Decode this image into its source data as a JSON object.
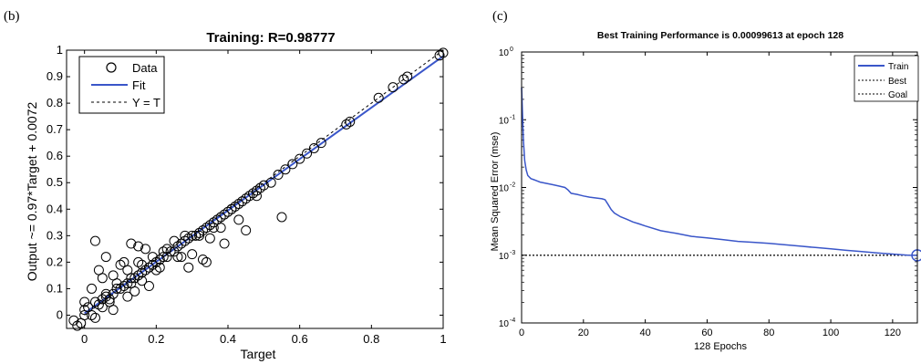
{
  "panels": {
    "b": {
      "label": "(b)"
    },
    "c": {
      "label": "(c)"
    }
  },
  "chart_data": [
    {
      "type": "scatter",
      "title": "Training: R=0.98777",
      "xlabel": "Target",
      "ylabel": "Output ~= 0.97*Target + 0.0072",
      "xlim": [
        -0.05,
        1
      ],
      "ylim": [
        -0.05,
        1
      ],
      "xticks": [
        "0",
        "0.2",
        "0.4",
        "0.6",
        "0.8",
        "1"
      ],
      "yticks": [
        "0",
        "0.1",
        "0.2",
        "0.3",
        "0.4",
        "0.5",
        "0.6",
        "0.7",
        "0.8",
        "0.9",
        "1"
      ],
      "legend": {
        "placement": "top-left",
        "entries": [
          "Data",
          "Fit",
          "Y = T"
        ]
      },
      "fit": {
        "slope": 0.97,
        "intercept": 0.0072
      },
      "series": [
        {
          "name": "Data",
          "marker": "circle",
          "x": [
            -0.03,
            -0.02,
            -0.01,
            0.0,
            0.0,
            0.01,
            0.02,
            0.03,
            0.04,
            0.05,
            0.06,
            0.07,
            0.08,
            0.09,
            0.1,
            0.11,
            0.12,
            0.13,
            0.14,
            0.15,
            0.16,
            0.17,
            0.18,
            0.19,
            0.2,
            0.21,
            0.22,
            0.23,
            0.24,
            0.25,
            0.26,
            0.27,
            0.28,
            0.29,
            0.3,
            0.31,
            0.32,
            0.33,
            0.34,
            0.35,
            0.36,
            0.37,
            0.38,
            0.39,
            0.4,
            0.41,
            0.42,
            0.43,
            0.44,
            0.45,
            0.46,
            0.47,
            0.48,
            0.49,
            0.5,
            0.52,
            0.54,
            0.56,
            0.58,
            0.6,
            0.62,
            0.64,
            0.66,
            0.73,
            0.74,
            0.82,
            0.86,
            0.89,
            0.9,
            0.99,
            1.0,
            0.0,
            0.02,
            0.03,
            0.04,
            0.05,
            0.06,
            0.06,
            0.08,
            0.1,
            0.11,
            0.13,
            0.13,
            0.15,
            0.16,
            0.17,
            0.2,
            0.25,
            0.29,
            0.33,
            0.35,
            0.39,
            0.45,
            0.55,
            0.12,
            0.18,
            0.27,
            0.34,
            0.05,
            0.08,
            0.14,
            0.15,
            0.22,
            0.3,
            0.38,
            0.03,
            0.07,
            0.09,
            0.16,
            0.21,
            0.26,
            0.32,
            0.43,
            0.48,
            0.12,
            0.19,
            0.23,
            0.28,
            0.36,
            0.41
          ],
          "y": [
            -0.02,
            -0.04,
            -0.03,
            0.0,
            0.02,
            0.03,
            0.0,
            0.05,
            0.04,
            0.06,
            0.07,
            0.06,
            0.08,
            0.1,
            0.1,
            0.11,
            0.12,
            0.12,
            0.14,
            0.15,
            0.16,
            0.17,
            0.18,
            0.19,
            0.2,
            0.21,
            0.22,
            0.22,
            0.24,
            0.24,
            0.26,
            0.27,
            0.28,
            0.29,
            0.3,
            0.3,
            0.31,
            0.32,
            0.33,
            0.34,
            0.35,
            0.36,
            0.37,
            0.38,
            0.39,
            0.4,
            0.41,
            0.42,
            0.43,
            0.44,
            0.45,
            0.46,
            0.47,
            0.48,
            0.49,
            0.5,
            0.53,
            0.55,
            0.57,
            0.59,
            0.61,
            0.63,
            0.65,
            0.72,
            0.73,
            0.82,
            0.86,
            0.89,
            0.9,
            0.98,
            0.99,
            0.05,
            0.1,
            0.28,
            0.17,
            0.14,
            0.08,
            0.22,
            0.15,
            0.19,
            0.2,
            0.27,
            0.14,
            0.26,
            0.13,
            0.25,
            0.17,
            0.28,
            0.18,
            0.21,
            0.29,
            0.27,
            0.32,
            0.37,
            0.07,
            0.11,
            0.22,
            0.2,
            0.03,
            0.02,
            0.09,
            0.2,
            0.24,
            0.23,
            0.33,
            -0.01,
            0.05,
            0.12,
            0.19,
            0.18,
            0.22,
            0.3,
            0.36,
            0.45,
            0.17,
            0.22,
            0.25,
            0.3,
            0.33,
            0.4
          ]
        }
      ]
    },
    {
      "type": "line",
      "title": "Best Training Performance is 0.00099613 at epoch 128",
      "xlabel": "128 Epochs",
      "ylabel": "Mean Squared Error  (mse)",
      "xlim": [
        0,
        128
      ],
      "ylim": [
        0.0001,
        1
      ],
      "yscale": "log",
      "xticks": [
        "0",
        "20",
        "40",
        "60",
        "80",
        "100",
        "120"
      ],
      "yticks": [
        {
          "base": "10",
          "exp": "0"
        },
        {
          "base": "10",
          "exp": "-1"
        },
        {
          "base": "10",
          "exp": "-2"
        },
        {
          "base": "10",
          "exp": "-3"
        },
        {
          "base": "10",
          "exp": "-4"
        }
      ],
      "legend": {
        "placement": "top-right",
        "entries": [
          "Train",
          "Best",
          "Goal"
        ]
      },
      "best": {
        "epoch": 128,
        "value": 0.00099613
      },
      "goal": 0.001,
      "series": [
        {
          "name": "Train",
          "color": "#3a56c9",
          "x": [
            0,
            0.3,
            0.6,
            1,
            1.5,
            2,
            3,
            4,
            5,
            6,
            8,
            10,
            12,
            14,
            15,
            16,
            18,
            20,
            22,
            24,
            26,
            27,
            28,
            29,
            30,
            32,
            34,
            36,
            38,
            40,
            45,
            50,
            55,
            60,
            65,
            70,
            75,
            80,
            85,
            90,
            95,
            100,
            105,
            110,
            115,
            120,
            125,
            128
          ],
          "y": [
            0.3,
            0.12,
            0.05,
            0.025,
            0.018,
            0.015,
            0.0135,
            0.013,
            0.0125,
            0.012,
            0.0115,
            0.011,
            0.0105,
            0.01,
            0.0092,
            0.0082,
            0.0079,
            0.0075,
            0.0072,
            0.007,
            0.0068,
            0.0066,
            0.0056,
            0.0047,
            0.0042,
            0.0037,
            0.0034,
            0.0031,
            0.0029,
            0.0027,
            0.0023,
            0.0021,
            0.0019,
            0.0018,
            0.0017,
            0.0016,
            0.00155,
            0.0015,
            0.00143,
            0.00136,
            0.0013,
            0.00124,
            0.00118,
            0.00113,
            0.00108,
            0.00104,
            0.001,
            0.00099613
          ]
        }
      ]
    }
  ]
}
